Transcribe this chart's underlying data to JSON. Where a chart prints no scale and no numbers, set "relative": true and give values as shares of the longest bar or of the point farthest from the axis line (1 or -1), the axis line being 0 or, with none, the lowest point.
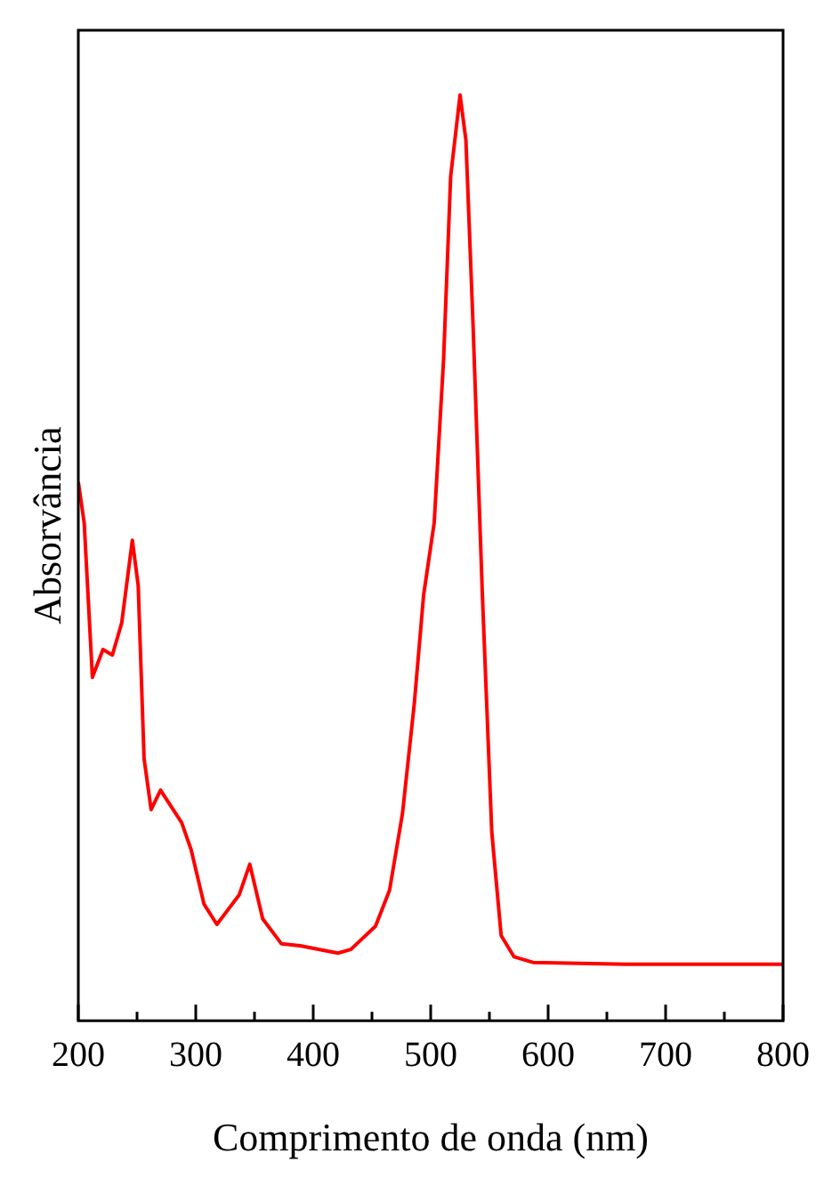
{
  "chart_data": {
    "type": "line",
    "xlabel": "Comprimento de onda (nm)",
    "ylabel": "Absorvância",
    "relative": true,
    "grid": false,
    "legend": false,
    "marker": "none",
    "line_style": "solid",
    "xlim": [
      200,
      800
    ],
    "xticks": [
      200,
      {
        "value": 250,
        "label": null
      },
      300,
      {
        "value": 350,
        "label": null
      },
      400,
      {
        "value": 450,
        "label": null
      },
      500,
      {
        "value": 550,
        "label": null
      },
      600,
      {
        "value": 650,
        "label": null
      },
      700,
      {
        "value": 750,
        "label": null
      },
      800
    ],
    "series": [
      {
        "color": "#ff0000",
        "x": [
          200,
          205,
          212,
          221,
          229,
          237,
          246,
          251,
          256,
          262,
          270,
          288,
          296,
          307,
          318,
          337,
          346,
          357,
          373,
          389,
          421,
          432,
          453,
          465,
          476,
          486,
          494,
          503,
          511,
          517,
          525,
          530,
          536,
          544,
          552,
          560,
          571,
          587,
          666,
          800
        ],
        "values": [
          0.582,
          0.538,
          0.371,
          0.401,
          0.395,
          0.43,
          0.519,
          0.47,
          0.283,
          0.228,
          0.249,
          0.214,
          0.185,
          0.126,
          0.104,
          0.136,
          0.169,
          0.11,
          0.083,
          0.081,
          0.073,
          0.077,
          0.102,
          0.141,
          0.224,
          0.342,
          0.46,
          0.538,
          0.715,
          0.912,
          1.0,
          0.951,
          0.754,
          0.46,
          0.204,
          0.092,
          0.069,
          0.063,
          0.061,
          0.061
        ]
      }
    ]
  }
}
